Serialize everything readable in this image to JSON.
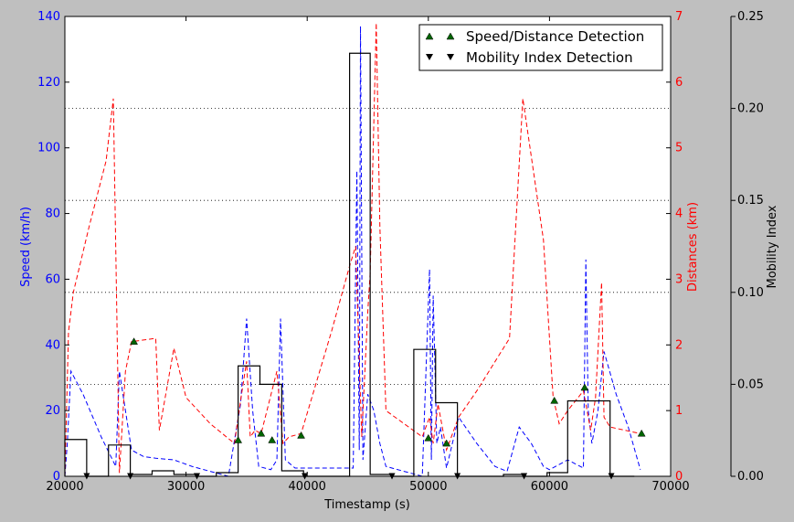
{
  "chart_data": {
    "type": "line",
    "xlabel": "Timestamp (s)",
    "ylabel_left": "Speed (km/h)",
    "ylabel_right": "Distances (km)",
    "ylabel_far_right": "Mobility Index",
    "xlim": [
      20000,
      70000
    ],
    "ylim_left": [
      0,
      140
    ],
    "ylim_right": [
      0,
      7
    ],
    "ylim_far_right": [
      0,
      0.25
    ],
    "x_ticks": [
      "20000",
      "30000",
      "40000",
      "50000",
      "60000",
      "70000"
    ],
    "y_ticks_left": [
      "0",
      "20",
      "40",
      "60",
      "80",
      "100",
      "120",
      "140"
    ],
    "y_ticks_right": [
      "0",
      "1",
      "2",
      "3",
      "4",
      "5",
      "6",
      "7"
    ],
    "y_ticks_far_right": [
      "0.00",
      "0.05",
      "0.10",
      "0.15",
      "0.20",
      "0.25"
    ],
    "grid": "horizontal dotted at mobility index ticks",
    "legend": {
      "placement": "top-right",
      "entries": [
        "Speed/Distance Detection",
        "Mobility Index Detection"
      ]
    },
    "colors": {
      "speed": "#0000ff",
      "distance": "#ff0000",
      "mobility": "#000000",
      "speed_distance_marker": "#006400",
      "mobility_marker": "#000000",
      "plot_background": "#ffffff",
      "figure_background": "#bfbfbf"
    },
    "series": [
      {
        "axis": "left",
        "style": "dashed",
        "points": [
          [
            20000,
            0
          ],
          [
            20200,
            10
          ],
          [
            20500,
            32
          ],
          [
            21500,
            25
          ],
          [
            23000,
            12
          ],
          [
            24200,
            3
          ],
          [
            24500,
            32
          ],
          [
            25000,
            20
          ],
          [
            25500,
            8
          ],
          [
            26500,
            6
          ],
          [
            27500,
            5.5
          ],
          [
            29000,
            5
          ],
          [
            30500,
            3
          ],
          [
            32500,
            1
          ],
          [
            33500,
            0
          ],
          [
            34500,
            22
          ],
          [
            35000,
            48
          ],
          [
            35500,
            20
          ],
          [
            36000,
            3
          ],
          [
            37000,
            2
          ],
          [
            37500,
            5
          ],
          [
            37800,
            48
          ],
          [
            38200,
            5
          ],
          [
            39000,
            2.5
          ],
          [
            42000,
            2.5
          ],
          [
            43800,
            2.5
          ],
          [
            44100,
            93
          ],
          [
            44300,
            8
          ],
          [
            44400,
            137
          ],
          [
            44600,
            5
          ],
          [
            45000,
            25
          ],
          [
            45500,
            20
          ],
          [
            46000,
            10
          ],
          [
            46500,
            3
          ],
          [
            48000,
            1.5
          ],
          [
            49500,
            0
          ],
          [
            50100,
            63
          ],
          [
            50250,
            5
          ],
          [
            50400,
            55
          ],
          [
            50700,
            10
          ],
          [
            51000,
            15
          ],
          [
            51500,
            2.5
          ],
          [
            52500,
            18
          ],
          [
            54000,
            10
          ],
          [
            55500,
            3
          ],
          [
            56500,
            1.5
          ],
          [
            57500,
            15
          ],
          [
            58500,
            10
          ],
          [
            59500,
            3
          ],
          [
            60000,
            2
          ],
          [
            61500,
            5
          ],
          [
            62800,
            2.5
          ],
          [
            63000,
            66
          ],
          [
            63200,
            20
          ],
          [
            63500,
            10
          ],
          [
            64000,
            20
          ],
          [
            64500,
            38
          ],
          [
            65500,
            25
          ],
          [
            66500,
            15
          ],
          [
            67500,
            2
          ]
        ]
      },
      {
        "axis": "right",
        "style": "dashed",
        "points": [
          [
            20000,
            0
          ],
          [
            20300,
            2.2
          ],
          [
            20700,
            2.8
          ],
          [
            22000,
            3.8
          ],
          [
            23400,
            4.8
          ],
          [
            24000,
            5.75
          ],
          [
            24500,
            0.05
          ],
          [
            25000,
            1.6
          ],
          [
            25500,
            2.05
          ],
          [
            27500,
            2.1
          ],
          [
            27800,
            0.7
          ],
          [
            29000,
            1.95
          ],
          [
            30000,
            1.2
          ],
          [
            32000,
            0.8
          ],
          [
            34000,
            0.5
          ],
          [
            34500,
            1.15
          ],
          [
            35000,
            1.75
          ],
          [
            35300,
            0.6
          ],
          [
            35700,
            0.7
          ],
          [
            36200,
            0.65
          ],
          [
            37500,
            1.6
          ],
          [
            38000,
            0.5
          ],
          [
            38500,
            0.6
          ],
          [
            39500,
            0.65
          ],
          [
            42000,
            2.2
          ],
          [
            43500,
            3.2
          ],
          [
            44000,
            3.5
          ],
          [
            44500,
            0.6
          ],
          [
            45000,
            2.5
          ],
          [
            45200,
            3.1
          ],
          [
            45700,
            6.9
          ],
          [
            46000,
            3.8
          ],
          [
            46500,
            1.0
          ],
          [
            48000,
            0.8
          ],
          [
            49500,
            0.6
          ],
          [
            50100,
            0.9
          ],
          [
            50400,
            0.5
          ],
          [
            50800,
            1.1
          ],
          [
            51500,
            0.4
          ],
          [
            52500,
            0.9
          ],
          [
            54000,
            1.3
          ],
          [
            56700,
            2.1
          ],
          [
            57800,
            5.75
          ],
          [
            59500,
            3.6
          ],
          [
            60300,
            1.2
          ],
          [
            60800,
            0.8
          ],
          [
            61500,
            1.0
          ],
          [
            62800,
            1.3
          ],
          [
            63400,
            0.7
          ],
          [
            63800,
            1.2
          ],
          [
            64300,
            2.95
          ],
          [
            64500,
            0.9
          ],
          [
            65000,
            0.75
          ],
          [
            67500,
            0.65
          ]
        ]
      },
      {
        "axis": "far_right",
        "style": "step",
        "points": [
          [
            20000,
            0.02
          ],
          [
            21800,
            0.0
          ],
          [
            23600,
            0.017
          ],
          [
            25400,
            0.001
          ],
          [
            27200,
            0.003
          ],
          [
            29000,
            0.001
          ],
          [
            31000,
            0.0
          ],
          [
            32500,
            0.002
          ],
          [
            34300,
            0.06
          ],
          [
            36100,
            0.05
          ],
          [
            37900,
            0.003
          ],
          [
            39700,
            0.0
          ],
          [
            43500,
            0.23
          ],
          [
            45200,
            0.001
          ],
          [
            47000,
            0.0
          ],
          [
            48800,
            0.069
          ],
          [
            50600,
            0.04
          ],
          [
            52400,
            0.0
          ],
          [
            56200,
            0.001
          ],
          [
            57900,
            0.0
          ],
          [
            59800,
            0.002
          ],
          [
            61500,
            0.041
          ],
          [
            65000,
            0.0
          ],
          [
            67000,
            0.0
          ]
        ]
      }
    ],
    "speed_distance_detections": [
      [
        25700,
        2.05
      ],
      [
        34300,
        0.55
      ],
      [
        36200,
        0.65
      ],
      [
        37100,
        0.55
      ],
      [
        39500,
        0.62
      ],
      [
        50000,
        0.58
      ],
      [
        51500,
        0.5
      ],
      [
        60400,
        1.15
      ],
      [
        62900,
        1.35
      ],
      [
        67600,
        0.65
      ]
    ],
    "mobility_index_detections": [
      21800,
      25400,
      30900,
      39800,
      47000,
      52400,
      57900,
      65100
    ]
  }
}
